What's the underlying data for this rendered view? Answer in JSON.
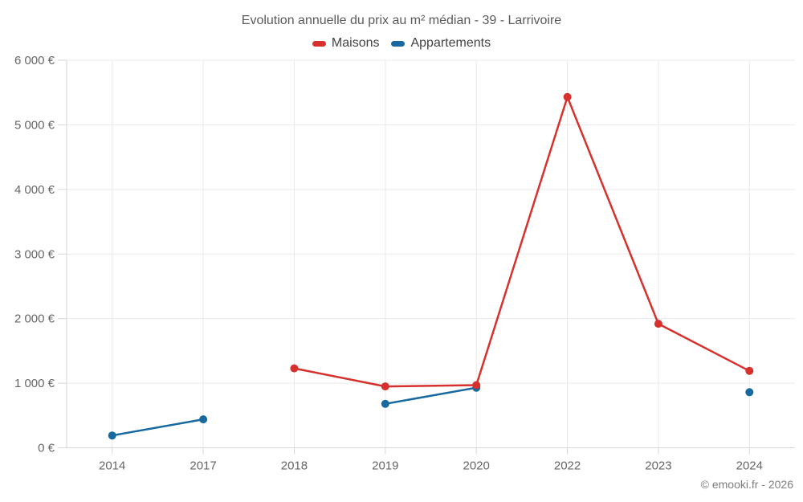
{
  "header": {
    "title": "Evolution annuelle du prix au m² médian - 39 - Larrivoire"
  },
  "footer": {
    "credit": "© emooki.fr - 2026"
  },
  "chart_data": {
    "type": "line",
    "title": "Evolution annuelle du prix au m² médian - 39 - Larrivoire",
    "categories": [
      "2014",
      "2017",
      "2018",
      "2019",
      "2020",
      "2022",
      "2023",
      "2024"
    ],
    "series": [
      {
        "name": "Maisons",
        "color": "#d7312d",
        "values": [
          null,
          null,
          1230,
          950,
          970,
          5430,
          1920,
          1190
        ]
      },
      {
        "name": "Appartements",
        "color": "#17699f",
        "values": [
          190,
          440,
          null,
          680,
          930,
          null,
          null,
          860
        ]
      }
    ],
    "ylim": [
      0,
      6000
    ],
    "yticks": [
      0,
      1000,
      2000,
      3000,
      4000,
      5000,
      6000
    ],
    "ytick_labels": [
      "0 €",
      "1 000 €",
      "2 000 €",
      "3 000 €",
      "4 000 €",
      "5 000 €",
      "6 000 €"
    ],
    "xlabel": "",
    "ylabel": "",
    "grid": true,
    "legend_position": "top",
    "colors": {
      "gridline": "#e9e9e9",
      "axis": "#d6d6d6",
      "tick_label": "#666666"
    }
  }
}
